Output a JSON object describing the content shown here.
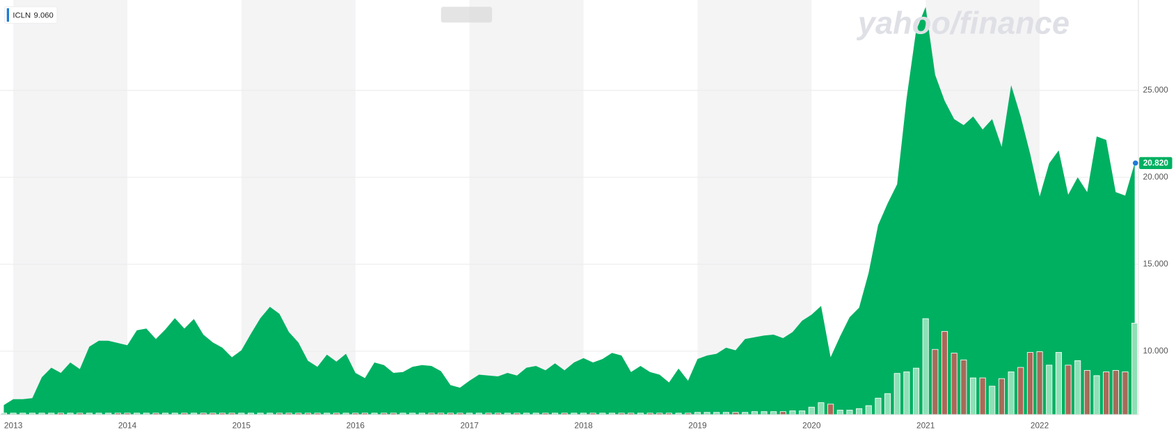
{
  "chart_data": {
    "type": "area",
    "categories": [
      null,
      "2013",
      null,
      null,
      null,
      null,
      null,
      null,
      null,
      null,
      null,
      null,
      null,
      "2014",
      null,
      null,
      null,
      null,
      null,
      null,
      null,
      null,
      null,
      null,
      null,
      "2015",
      null,
      null,
      null,
      null,
      null,
      null,
      null,
      null,
      null,
      null,
      null,
      "2016",
      null,
      null,
      null,
      null,
      null,
      null,
      null,
      null,
      null,
      null,
      null,
      "2017",
      null,
      null,
      null,
      null,
      null,
      null,
      null,
      null,
      null,
      null,
      null,
      "2018",
      null,
      null,
      null,
      null,
      null,
      null,
      null,
      null,
      null,
      null,
      null,
      "2019",
      null,
      null,
      null,
      null,
      null,
      null,
      null,
      null,
      null,
      null,
      null,
      "2020",
      null,
      null,
      null,
      null,
      null,
      null,
      null,
      null,
      null,
      null,
      null,
      "2021",
      null,
      null,
      null,
      null,
      null,
      null,
      null,
      null,
      null,
      null,
      null,
      "2022",
      null,
      null,
      null,
      null,
      null,
      null,
      null,
      null,
      null,
      null
    ],
    "series": [
      {
        "name": "ICLN",
        "color": "#00b061",
        "values": [
          6.9,
          7.24,
          7.24,
          7.3,
          8.5,
          9.05,
          8.75,
          9.35,
          8.97,
          10.26,
          10.6,
          10.6,
          10.47,
          10.34,
          11.2,
          11.3,
          10.7,
          11.25,
          11.9,
          11.3,
          11.85,
          10.95,
          10.5,
          10.2,
          9.65,
          10.05,
          11.0,
          11.9,
          12.55,
          12.15,
          11.1,
          10.5,
          9.45,
          9.1,
          9.8,
          9.4,
          9.85,
          8.75,
          8.45,
          9.35,
          9.2,
          8.75,
          8.8,
          9.1,
          9.2,
          9.15,
          8.85,
          8.05,
          7.9,
          8.3,
          8.65,
          8.6,
          8.55,
          8.75,
          8.6,
          9.05,
          9.15,
          8.9,
          9.3,
          8.9,
          9.35,
          9.6,
          9.35,
          9.55,
          9.9,
          9.75,
          8.8,
          9.15,
          8.8,
          8.65,
          8.2,
          9.0,
          8.3,
          9.55,
          9.75,
          9.85,
          10.2,
          10.05,
          10.7,
          10.8,
          10.9,
          10.95,
          10.75,
          11.1,
          11.75,
          12.1,
          12.6,
          9.65,
          10.85,
          11.95,
          12.5,
          14.5,
          17.25,
          18.5,
          19.6,
          24.55,
          28.45,
          29.8,
          25.9,
          24.4,
          23.35,
          23.0,
          23.5,
          22.75,
          23.35,
          21.75,
          25.3,
          23.5,
          21.35,
          18.9,
          20.8,
          21.55,
          19.0,
          20.0,
          19.15,
          22.35,
          22.15,
          19.15,
          18.95,
          20.82
        ]
      }
    ],
    "legend_value": "9.060",
    "last_value_label": "20.820",
    "last_value_color": "#00b061",
    "marker_color": "#1e7bd6",
    "ylim": [
      6.35,
      30.2
    ],
    "yticks": [
      {
        "value": 10,
        "label": "10.000"
      },
      {
        "value": 15,
        "label": "15.000"
      },
      {
        "value": 20,
        "label": "20.000"
      },
      {
        "value": 25,
        "label": "25.000"
      }
    ],
    "grid": true,
    "volume": {
      "up_color": "#8ee0b6",
      "down_color": "#a86a58",
      "ylim": [
        0,
        553
      ],
      "values": [
        2,
        2,
        2,
        2,
        2,
        2,
        2,
        2,
        2,
        2,
        2,
        2,
        2,
        2,
        2,
        2,
        2,
        2,
        2,
        2,
        2,
        2,
        2,
        2,
        2,
        2,
        2,
        2,
        2,
        2,
        2,
        2,
        2,
        2,
        2,
        2,
        2,
        2,
        2,
        2,
        2,
        2,
        2,
        2,
        2,
        2,
        2,
        2,
        2,
        2,
        2,
        2,
        2,
        2,
        2,
        2,
        2,
        2,
        2,
        2,
        2,
        2,
        2,
        2,
        2,
        2,
        2,
        2,
        2,
        2,
        2,
        2,
        2,
        3,
        3,
        3,
        3,
        3,
        3,
        4,
        4,
        4,
        4,
        5,
        5,
        10,
        16,
        14,
        6,
        6,
        8,
        12,
        22,
        28,
        55,
        57,
        62,
        128,
        87,
        111,
        82,
        73,
        49,
        49,
        38,
        48,
        57,
        63,
        83,
        84,
        66,
        83,
        66,
        72,
        59,
        52,
        57,
        59,
        57,
        122
      ]
    },
    "watermark": "yahoo/finance"
  }
}
